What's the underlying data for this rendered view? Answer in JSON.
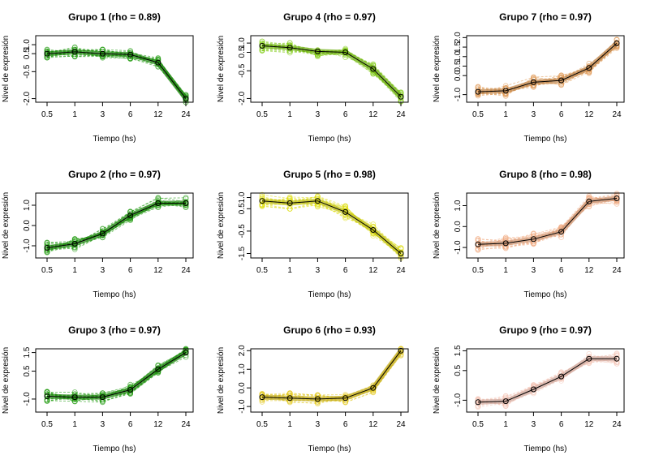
{
  "chart_data": [
    {
      "type": "line",
      "title": "Grupo 1 (rho = 0.89)",
      "xlabel": "Tiempo  (hs)",
      "ylabel": "Nivel de expresión",
      "categories": [
        "0.5",
        "1",
        "3",
        "6",
        "12",
        "24"
      ],
      "yticks": [
        "-2.0",
        "-0.5",
        "0.5",
        "1.0"
      ],
      "ytick_values": [
        -2.0,
        -0.5,
        0.5,
        1.0
      ],
      "ylim": [
        -2.2,
        1.5
      ],
      "series": [
        {
          "values": [
            0.5,
            0.6,
            0.5,
            0.45,
            0.0,
            -2.0
          ]
        }
      ],
      "color": "#1e9a0c"
    },
    {
      "type": "line",
      "title": "Grupo 4 (rho = 0.97)",
      "xlabel": "Tiempo  (hs)",
      "ylabel": "Nivel de expresión",
      "categories": [
        "0.5",
        "1",
        "3",
        "6",
        "12",
        "24"
      ],
      "yticks": [
        "-2.0",
        "-0.5",
        "0.5",
        "1.0"
      ],
      "ytick_values": [
        -2.0,
        -0.5,
        0.5,
        1.0
      ],
      "ylim": [
        -2.2,
        1.4
      ],
      "series": [
        {
          "values": [
            0.85,
            0.75,
            0.55,
            0.5,
            -0.4,
            -1.9
          ]
        }
      ],
      "color": "#7ecb10"
    },
    {
      "type": "line",
      "title": "Grupo 7 (rho = 0.97)",
      "xlabel": "Tiempo  (hs)",
      "ylabel": "Nivel de expresión",
      "categories": [
        "0.5",
        "1",
        "3",
        "6",
        "12",
        "24"
      ],
      "yticks": [
        "-1.0",
        "0.0",
        "0.5",
        "1.0",
        "1.5",
        "2.0"
      ],
      "ytick_values": [
        -1.0,
        0.0,
        0.5,
        1.0,
        1.5,
        2.0
      ],
      "ylim": [
        -1.4,
        2.1
      ],
      "series": [
        {
          "values": [
            -0.85,
            -0.8,
            -0.35,
            -0.25,
            0.4,
            1.7
          ]
        }
      ],
      "color": "#e09a56"
    },
    {
      "type": "line",
      "title": "Grupo 2 (rho = 0.97)",
      "xlabel": "Tiempo  (hs)",
      "ylabel": "Nivel de expresión",
      "categories": [
        "0.5",
        "1",
        "3",
        "6",
        "12",
        "24"
      ],
      "yticks": [
        "-1.0",
        "0.0",
        "1.0"
      ],
      "ytick_values": [
        -1.0,
        0.0,
        1.0
      ],
      "ylim": [
        -1.6,
        1.6
      ],
      "series": [
        {
          "values": [
            -1.1,
            -0.9,
            -0.4,
            0.5,
            1.1,
            1.1
          ]
        }
      ],
      "color": "#1e9a0c"
    },
    {
      "type": "line",
      "title": "Grupo 5 (rho = 0.98)",
      "xlabel": "Tiempo  (hs)",
      "ylabel": "Nivel de expresión",
      "categories": [
        "0.5",
        "1",
        "3",
        "6",
        "12",
        "24"
      ],
      "yticks": [
        "-1.5",
        "-0.5",
        "0.5",
        "1.0"
      ],
      "ytick_values": [
        -1.5,
        -0.5,
        0.5,
        1.0
      ],
      "ylim": [
        -1.7,
        1.2
      ],
      "series": [
        {
          "values": [
            0.85,
            0.75,
            0.85,
            0.35,
            -0.45,
            -1.5
          ]
        }
      ],
      "color": "#dede10"
    },
    {
      "type": "line",
      "title": "Grupo 8 (rho = 0.98)",
      "xlabel": "Tiempo  (hs)",
      "ylabel": "Nivel de expresión",
      "categories": [
        "0.5",
        "1",
        "3",
        "6",
        "12",
        "24"
      ],
      "yticks": [
        "-1.0",
        "0.0",
        "1.0"
      ],
      "ytick_values": [
        -1.0,
        0.0,
        1.0
      ],
      "ylim": [
        -1.5,
        1.6
      ],
      "series": [
        {
          "values": [
            -0.85,
            -0.8,
            -0.6,
            -0.25,
            1.2,
            1.35
          ]
        }
      ],
      "color": "#f0aa80"
    },
    {
      "type": "line",
      "title": "Grupo 3 (rho = 0.97)",
      "xlabel": "Tiempo  (hs)",
      "ylabel": "Nivel de expresión",
      "categories": [
        "0.5",
        "1",
        "3",
        "6",
        "12",
        "24"
      ],
      "yticks": [
        "-1.0",
        "0.5",
        "1.5"
      ],
      "ytick_values": [
        -1.0,
        0.5,
        1.5
      ],
      "ylim": [
        -1.7,
        1.7
      ],
      "series": [
        {
          "values": [
            -0.85,
            -0.9,
            -0.9,
            -0.5,
            0.6,
            1.5
          ]
        }
      ],
      "color": "#1e9a0c"
    },
    {
      "type": "line",
      "title": "Grupo 6 (rho = 0.93)",
      "xlabel": "Tiempo  (hs)",
      "ylabel": "Nivel de expresión",
      "categories": [
        "0.5",
        "1",
        "3",
        "6",
        "12",
        "24"
      ],
      "yticks": [
        "-1.0",
        "0.0",
        "1.0",
        "2.0"
      ],
      "ytick_values": [
        -1.0,
        0.0,
        1.0,
        2.0
      ],
      "ylim": [
        -1.3,
        2.1
      ],
      "series": [
        {
          "values": [
            -0.5,
            -0.55,
            -0.6,
            -0.55,
            0.0,
            2.0
          ]
        }
      ],
      "color": "#e2c820"
    },
    {
      "type": "line",
      "title": "Grupo 9 (rho = 0.97)",
      "xlabel": "Tiempo  (hs)",
      "ylabel": "Nivel de expresión",
      "categories": [
        "0.5",
        "1",
        "3",
        "6",
        "12",
        "24"
      ],
      "yticks": [
        "-1.0",
        "0.5",
        "1.5"
      ],
      "ytick_values": [
        -1.0,
        0.5,
        1.5
      ],
      "ylim": [
        -1.6,
        1.6
      ],
      "series": [
        {
          "values": [
            -1.1,
            -1.05,
            -0.45,
            0.2,
            1.1,
            1.1
          ]
        }
      ],
      "color": "#f4c4b6"
    }
  ]
}
